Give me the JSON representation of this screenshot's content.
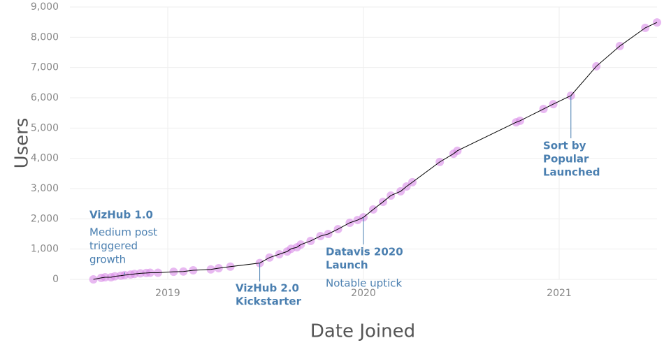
{
  "chart_data": {
    "type": "scatter",
    "x_label": "Date Joined",
    "y_label": "Users",
    "xlim": [
      2018.5,
      2021.5
    ],
    "xticks": [
      2019,
      2020,
      2021
    ],
    "ylim": [
      0,
      9000
    ],
    "yticks": [
      0,
      {
        "value": 1000,
        "label": "1,000"
      },
      {
        "value": 2000,
        "label": "2,000"
      },
      {
        "value": 3000,
        "label": "3,000"
      },
      {
        "value": 4000,
        "label": "4,000"
      },
      {
        "value": 5000,
        "label": "5,000"
      },
      {
        "value": 6000,
        "label": "6,000"
      },
      {
        "value": 7000,
        "label": "7,000"
      },
      {
        "value": 8000,
        "label": "8,000"
      },
      {
        "value": 9000,
        "label": "9,000"
      }
    ],
    "grid": true,
    "line_color": "#000000",
    "series": [
      {
        "name": "Users",
        "color": "#d98be8",
        "x": [
          2018.62,
          2018.66,
          2018.68,
          2018.71,
          2018.73,
          2018.76,
          2018.78,
          2018.81,
          2018.83,
          2018.86,
          2018.89,
          2018.91,
          2018.95,
          2019.03,
          2019.08,
          2019.13,
          2019.22,
          2019.26,
          2019.32,
          2019.47,
          2019.52,
          2019.57,
          2019.61,
          2019.63,
          2019.66,
          2019.68,
          2019.73,
          2019.78,
          2019.82,
          2019.87,
          2019.93,
          2019.97,
          2020.0,
          2020.05,
          2020.1,
          2020.14,
          2020.19,
          2020.22,
          2020.25,
          2020.39,
          2020.46,
          2020.48,
          2020.78,
          2020.8,
          2020.92,
          2020.97,
          2021.06,
          2021.19,
          2021.31,
          2021.44,
          2021.5
        ],
        "values": [
          0,
          50,
          70,
          70,
          100,
          120,
          140,
          160,
          180,
          200,
          210,
          220,
          220,
          250,
          260,
          300,
          330,
          370,
          420,
          540,
          720,
          830,
          920,
          1010,
          1060,
          1150,
          1270,
          1430,
          1500,
          1660,
          1870,
          1960,
          2050,
          2310,
          2560,
          2770,
          2910,
          3070,
          3210,
          3880,
          4150,
          4250,
          5190,
          5240,
          5630,
          5790,
          6070,
          7040,
          7710,
          8310,
          8490
        ]
      }
    ],
    "annotations": [
      {
        "title": [
          "VizHub 1.0"
        ],
        "note": [
          "Medium post",
          "triggered",
          "growth"
        ]
      },
      {
        "title": [
          "VizHub 2.0",
          "Kickstarter"
        ],
        "note": []
      },
      {
        "title": [
          "Datavis 2020",
          "Launch"
        ],
        "note": [
          "Notable uptick"
        ]
      },
      {
        "title": [
          "Sort by",
          "Popular",
          "Launched"
        ],
        "note": []
      }
    ]
  }
}
